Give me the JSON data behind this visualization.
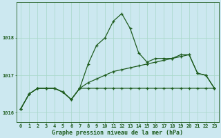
{
  "title": "Graphe pression niveau de la mer (hPa)",
  "bg_color": "#cce8f0",
  "grid_color": "#a8d8c8",
  "line_color": "#1e5c1e",
  "x_labels": [
    "0",
    "1",
    "2",
    "3",
    "4",
    "5",
    "6",
    "7",
    "8",
    "9",
    "10",
    "11",
    "12",
    "13",
    "14",
    "15",
    "16",
    "17",
    "18",
    "19",
    "20",
    "21",
    "22",
    "23"
  ],
  "hours": [
    0,
    1,
    2,
    3,
    4,
    5,
    6,
    7,
    8,
    9,
    10,
    11,
    12,
    13,
    14,
    15,
    16,
    17,
    18,
    19,
    20,
    21,
    22,
    23
  ],
  "line_top": [
    1016.1,
    1016.5,
    1016.65,
    1016.65,
    1016.65,
    1016.55,
    1016.35,
    1016.65,
    1017.3,
    1017.8,
    1018.0,
    1018.45,
    1018.65,
    1018.25,
    1017.6,
    1017.35,
    1017.45,
    1017.45,
    1017.45,
    1017.55,
    1017.55,
    1017.05,
    1017.0,
    1016.65
  ],
  "line_mid": [
    1016.1,
    1016.5,
    1016.65,
    1016.65,
    1016.65,
    1016.55,
    1016.35,
    1016.65,
    1016.8,
    1016.9,
    1017.0,
    1017.1,
    1017.15,
    1017.2,
    1017.25,
    1017.3,
    1017.35,
    1017.4,
    1017.45,
    1017.5,
    1017.55,
    1017.05,
    1017.0,
    1016.65
  ],
  "line_bot": [
    1016.1,
    1016.5,
    1016.65,
    1016.65,
    1016.65,
    1016.55,
    1016.35,
    1016.65,
    1016.65,
    1016.65,
    1016.65,
    1016.65,
    1016.65,
    1016.65,
    1016.65,
    1016.65,
    1016.65,
    1016.65,
    1016.65,
    1016.65,
    1016.65,
    1016.65,
    1016.65,
    1016.65
  ],
  "ylim": [
    1015.75,
    1018.95
  ],
  "yticks": [
    1016,
    1017,
    1018
  ],
  "xlim": [
    -0.5,
    23.5
  ],
  "marker": "+",
  "marker_size": 3.5,
  "marker_ew": 0.9,
  "line_width": 0.9,
  "tick_fontsize": 5.0,
  "label_fontsize": 6.0,
  "spine_lw": 0.6
}
